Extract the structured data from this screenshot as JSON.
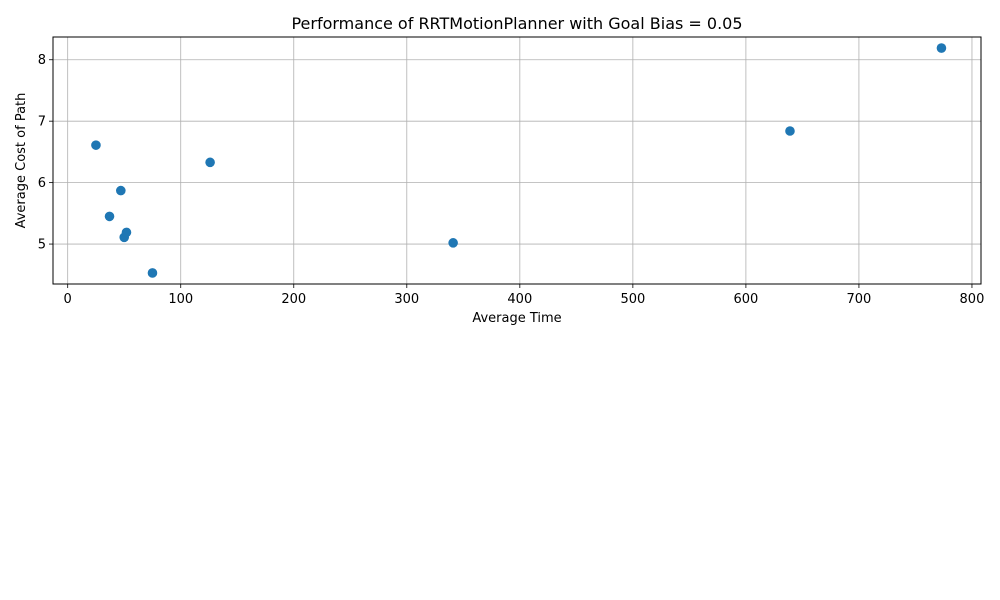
{
  "chart_data": {
    "type": "scatter",
    "title": "Performance of RRTMotionPlanner with Goal Bias = 0.05",
    "xlabel": "Average Time",
    "ylabel": "Average Cost of Path",
    "xlim": [
      -13,
      808
    ],
    "ylim": [
      4.35,
      8.37
    ],
    "xticks": [
      0,
      100,
      200,
      300,
      400,
      500,
      600,
      700,
      800
    ],
    "yticks": [
      5,
      6,
      7,
      8
    ],
    "grid": true,
    "point_color": "#1f77b4",
    "points": [
      {
        "x": 25,
        "y": 6.61
      },
      {
        "x": 37,
        "y": 5.45
      },
      {
        "x": 47,
        "y": 5.87
      },
      {
        "x": 50,
        "y": 5.11
      },
      {
        "x": 52,
        "y": 5.19
      },
      {
        "x": 75,
        "y": 4.53
      },
      {
        "x": 126,
        "y": 6.33
      },
      {
        "x": 341,
        "y": 5.02
      },
      {
        "x": 639,
        "y": 6.84
      },
      {
        "x": 773,
        "y": 8.19
      }
    ]
  }
}
